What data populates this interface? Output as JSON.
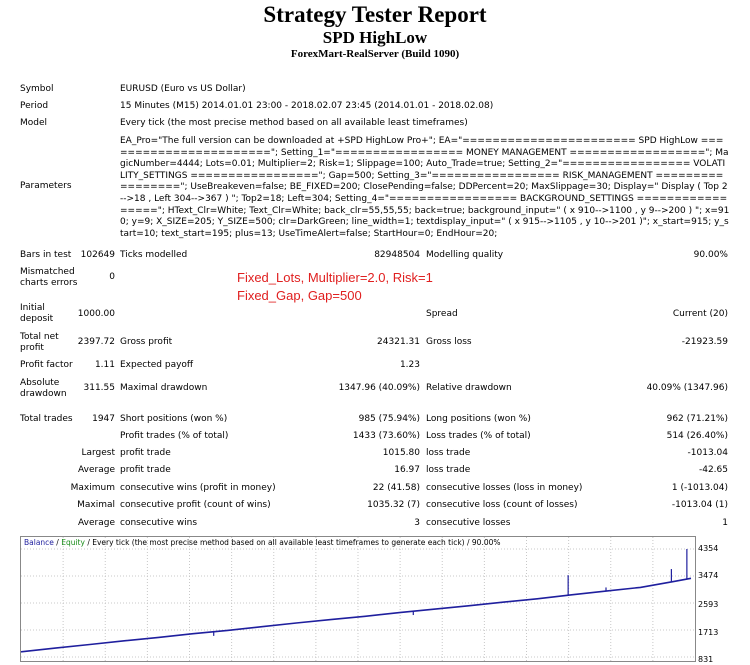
{
  "header": {
    "title": "Strategy Tester Report",
    "ea_name": "SPD HighLow",
    "server": "ForexMart-RealServer (Build 1090)"
  },
  "info": {
    "symbol_label": "Symbol",
    "symbol_value": "EURUSD (Euro vs US Dollar)",
    "period_label": "Period",
    "period_value": "15 Minutes (M15) 2014.01.01 23:00 - 2018.02.07 23:45 (2014.01.01 - 2018.02.08)",
    "model_label": "Model",
    "model_value": "Every tick (the most precise method based on all available least timeframes)",
    "parameters_label": "Parameters",
    "parameters_value": "EA_Pro=\"The full version can be downloaded at +SPD HighLow Pro+\"; EA=\"======================= SPD HighLow =======================\"; Setting_1=\"================= MONEY MANAGEMENT ==================\"; MagicNumber=4444; Lots=0.01; Multiplier=2; Risk=1; Slippage=100; Auto_Trade=true; Setting_2=\"================= VOLATILITY_SETTINGS =================\"; Gap=500; Setting_3=\"================= RISK_MANAGEMENT =================\"; UseBreakeven=false; BE_FIXED=200; ClosePending=false; DDPercent=20; MaxSlippage=30; Display=\" Display ( Top 2-->18 , Left 304-->367 ) \"; Top2=18; Left=304; Setting_4=\"================= BACKGROUND_SETTINGS =================\"; HText_Clr=White; Text_Clr=White; back_clr=55,55,55; back=true; background_input=\" ( x 910-->1100 , y 9-->200 ) \"; x=910; y=9; X_SIZE=205; Y_SIZE=500; clr=DarkGreen; line_width=1; textdisplay_input=\" ( x 915-->1105 , y 10-->201 )\"; x_start=915; y_start=10; text_start=195; plus=13; UseTimeAlert=false; StartHour=0; EndHour=20;"
  },
  "stats": {
    "bars_label": "Bars in test",
    "bars_value": "102649",
    "ticks_label": "Ticks modelled",
    "ticks_value": "82948504",
    "quality_label": "Modelling quality",
    "quality_value": "90.00%",
    "mismatch_label_1": "Mismatched",
    "mismatch_label_2": "charts errors",
    "mismatch_value": "0",
    "note_line1": "Fixed_Lots,  Multiplier=2.0, Risk=1",
    "note_line2": "Fixed_Gap, Gap=500",
    "deposit_label_1": "Initial",
    "deposit_label_2": "deposit",
    "deposit_value": "1000.00",
    "spread_label": "Spread",
    "spread_value": "Current (20)",
    "netprofit_label_1": "Total net",
    "netprofit_label_2": "profit",
    "netprofit_value": "2397.72",
    "grossprofit_label": "Gross profit",
    "grossprofit_value": "24321.31",
    "grossloss_label": "Gross loss",
    "grossloss_value": "-21923.59",
    "pf_label": "Profit factor",
    "pf_value": "1.11",
    "payoff_label": "Expected payoff",
    "payoff_value": "1.23",
    "absdd_label_1": "Absolute",
    "absdd_label_2": "drawdown",
    "absdd_value": "311.55",
    "maxdd_label": "Maximal drawdown",
    "maxdd_value": "1347.96 (40.09%)",
    "reldd_label": "Relative drawdown",
    "reldd_value": "40.09% (1347.96)",
    "trades_label": "Total trades",
    "trades_value": "1947",
    "short_label": "Short positions (won %)",
    "short_value": "985 (75.94%)",
    "long_label": "Long positions (won %)",
    "long_value": "962 (71.21%)",
    "profit_trades_label": "Profit trades (% of total)",
    "profit_trades_value": "1433 (73.60%)",
    "loss_trades_label": "Loss trades (% of total)",
    "loss_trades_value": "514 (26.40%)",
    "largest_label": "Largest",
    "largest_profit_label": "profit trade",
    "largest_profit_value": "1015.80",
    "largest_loss_label": "loss trade",
    "largest_loss_value": "-1013.04",
    "average_label": "Average",
    "average_profit_label": "profit trade",
    "average_profit_value": "16.97",
    "average_loss_label": "loss trade",
    "average_loss_value": "-42.65",
    "maximum_label": "Maximum",
    "max_wins_label": "consecutive wins (profit in money)",
    "max_wins_value": "22 (41.58)",
    "max_losses_label": "consecutive losses (loss in money)",
    "max_losses_value": "1 (-1013.04)",
    "maximal_label": "Maximal",
    "maximal_profit_label": "consecutive profit (count of wins)",
    "maximal_profit_value": "1035.32 (7)",
    "maximal_loss_label": "consecutive loss (count of losses)",
    "maximal_loss_value": "-1013.04 (1)",
    "avg_label": "Average",
    "avg_wins_label": "consecutive wins",
    "avg_wins_value": "3",
    "avg_losses_label": "consecutive losses",
    "avg_losses_value": "1"
  },
  "chart_data": {
    "type": "line",
    "legend": {
      "balance": "Balance",
      "sep": " / ",
      "equity": "Equity",
      "desc": " / Every tick (the most precise method based on all available least timeframes to generate each tick) / 90.00%"
    },
    "y_ticks": [
      "4354",
      "3474",
      "2593",
      "1713",
      "831"
    ],
    "ylim": [
      831,
      4354
    ],
    "x": [
      0,
      100,
      200,
      300,
      400,
      500,
      600,
      700,
      800,
      900,
      1000,
      1100,
      1200,
      1300,
      1400,
      1500,
      1600,
      1700,
      1800,
      1900,
      1947
    ],
    "series": [
      {
        "name": "Balance",
        "values": [
          1000,
          1120,
          1240,
          1360,
          1470,
          1590,
          1700,
          1820,
          1940,
          2050,
          2160,
          2280,
          2390,
          2500,
          2620,
          2730,
          2860,
          2980,
          3100,
          3300,
          3397
        ]
      }
    ],
    "spikes": [
      {
        "x": 560,
        "y": 1520
      },
      {
        "x": 1140,
        "y": 2200
      },
      {
        "x": 1590,
        "y": 3500
      },
      {
        "x": 1700,
        "y": 3100
      },
      {
        "x": 1890,
        "y": 3700
      },
      {
        "x": 1935,
        "y": 4354
      }
    ],
    "colors": {
      "balance": "#1f1f9e",
      "equity": "#1a8c1a",
      "grid": "#c8c8c8"
    }
  }
}
